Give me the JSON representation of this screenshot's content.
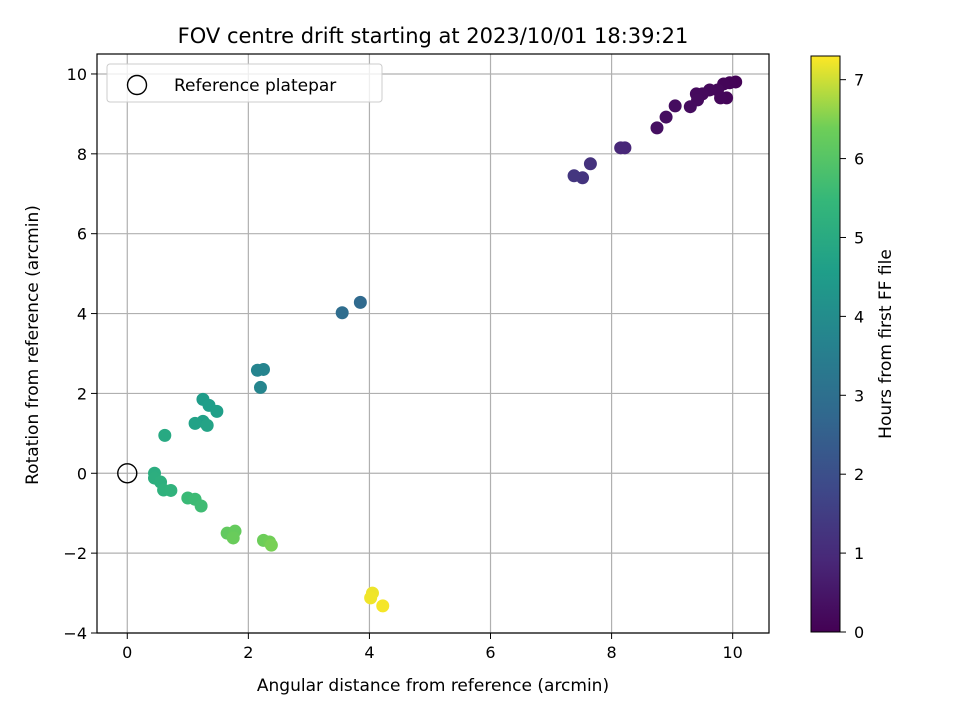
{
  "chart_data": {
    "type": "scatter",
    "title": "FOV centre drift starting at 2023/10/01 18:39:21",
    "xlabel": "Angular distance from reference (arcmin)",
    "ylabel": "Rotation from reference (arcmin)",
    "xlim": [
      -0.5,
      10.6
    ],
    "ylim": [
      -4,
      10.5
    ],
    "xticks": [
      0,
      2,
      4,
      6,
      8,
      10
    ],
    "yticks": [
      -4,
      -2,
      0,
      2,
      4,
      6,
      8,
      10
    ],
    "grid": true,
    "legend": {
      "placement": "top-left",
      "entries": [
        "Reference platepar"
      ]
    },
    "reference_point": {
      "x": 0,
      "y": 0
    },
    "colorbar": {
      "label": "Hours from first FF file",
      "range": [
        0,
        7.3
      ],
      "ticks": [
        0,
        1,
        2,
        3,
        4,
        5,
        6,
        7
      ],
      "colormap": "viridis"
    },
    "points": [
      {
        "x": 10.05,
        "y": 9.8,
        "t": 0.05
      },
      {
        "x": 9.95,
        "y": 9.78,
        "t": 0.08
      },
      {
        "x": 9.85,
        "y": 9.75,
        "t": 0.1
      },
      {
        "x": 9.9,
        "y": 9.4,
        "t": 0.12
      },
      {
        "x": 9.8,
        "y": 9.4,
        "t": 0.14
      },
      {
        "x": 9.75,
        "y": 9.6,
        "t": 0.16
      },
      {
        "x": 9.62,
        "y": 9.6,
        "t": 0.18
      },
      {
        "x": 9.5,
        "y": 9.5,
        "t": 0.2
      },
      {
        "x": 9.4,
        "y": 9.5,
        "t": 0.22
      },
      {
        "x": 9.42,
        "y": 9.35,
        "t": 0.24
      },
      {
        "x": 9.3,
        "y": 9.18,
        "t": 0.26
      },
      {
        "x": 9.05,
        "y": 9.2,
        "t": 0.28
      },
      {
        "x": 8.9,
        "y": 8.92,
        "t": 0.3
      },
      {
        "x": 8.75,
        "y": 8.65,
        "t": 0.33
      },
      {
        "x": 8.22,
        "y": 8.15,
        "t": 0.9
      },
      {
        "x": 8.15,
        "y": 8.15,
        "t": 0.92
      },
      {
        "x": 7.65,
        "y": 7.75,
        "t": 1.2
      },
      {
        "x": 7.52,
        "y": 7.4,
        "t": 1.25
      },
      {
        "x": 7.38,
        "y": 7.45,
        "t": 1.3
      },
      {
        "x": 3.85,
        "y": 4.28,
        "t": 2.8
      },
      {
        "x": 3.55,
        "y": 4.02,
        "t": 2.9
      },
      {
        "x": 2.25,
        "y": 2.6,
        "t": 3.7
      },
      {
        "x": 2.15,
        "y": 2.58,
        "t": 3.72
      },
      {
        "x": 2.2,
        "y": 2.15,
        "t": 3.75
      },
      {
        "x": 1.25,
        "y": 1.85,
        "t": 4.5
      },
      {
        "x": 1.35,
        "y": 1.7,
        "t": 4.55
      },
      {
        "x": 1.48,
        "y": 1.55,
        "t": 4.6
      },
      {
        "x": 1.25,
        "y": 1.3,
        "t": 4.65
      },
      {
        "x": 1.12,
        "y": 1.25,
        "t": 4.7
      },
      {
        "x": 1.32,
        "y": 1.2,
        "t": 4.75
      },
      {
        "x": 0.62,
        "y": 0.95,
        "t": 4.95
      },
      {
        "x": 0.45,
        "y": 0.0,
        "t": 5.1
      },
      {
        "x": 0.45,
        "y": -0.12,
        "t": 5.15
      },
      {
        "x": 0.55,
        "y": -0.22,
        "t": 5.2
      },
      {
        "x": 0.6,
        "y": -0.42,
        "t": 5.25
      },
      {
        "x": 0.72,
        "y": -0.43,
        "t": 5.3
      },
      {
        "x": 1.0,
        "y": -0.62,
        "t": 5.55
      },
      {
        "x": 1.12,
        "y": -0.65,
        "t": 5.6
      },
      {
        "x": 1.22,
        "y": -0.82,
        "t": 5.65
      },
      {
        "x": 1.65,
        "y": -1.5,
        "t": 6.2
      },
      {
        "x": 1.78,
        "y": -1.45,
        "t": 6.25
      },
      {
        "x": 1.75,
        "y": -1.62,
        "t": 6.3
      },
      {
        "x": 2.25,
        "y": -1.68,
        "t": 6.35
      },
      {
        "x": 2.35,
        "y": -1.72,
        "t": 6.4
      },
      {
        "x": 2.38,
        "y": -1.8,
        "t": 6.45
      },
      {
        "x": 4.05,
        "y": -3.0,
        "t": 7.2
      },
      {
        "x": 4.02,
        "y": -3.12,
        "t": 7.22
      },
      {
        "x": 4.22,
        "y": -3.32,
        "t": 7.25
      }
    ]
  }
}
